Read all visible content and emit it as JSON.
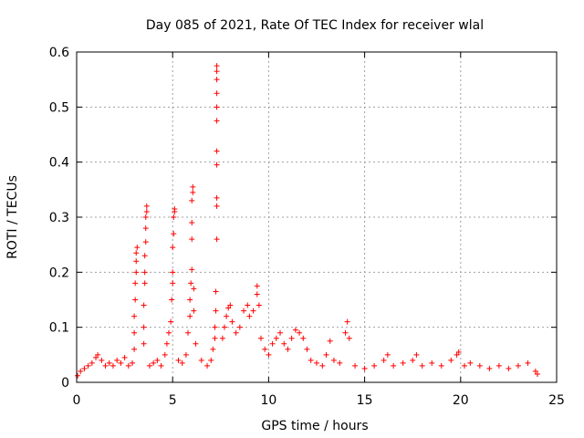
{
  "chart_data": {
    "type": "scatter",
    "title": "Day 085 of 2021, Rate Of TEC Index for receiver wlal",
    "xlabel": "GPS time / hours",
    "ylabel": "ROTI / TECUs",
    "xlim": [
      0,
      25
    ],
    "ylim": [
      0,
      0.6
    ],
    "xticks": [
      0,
      5,
      10,
      15,
      20,
      25
    ],
    "xtick_labels": [
      "0",
      "5",
      "10",
      "15",
      "20",
      "25"
    ],
    "yticks": [
      0,
      0.1,
      0.2,
      0.3,
      0.4,
      0.5,
      0.6
    ],
    "ytick_labels": [
      "0",
      "0.1",
      "0.2",
      "0.3",
      "0.4",
      "0.5",
      "0.6"
    ],
    "grid": true,
    "marker": "+",
    "color": "#ff0000",
    "series": [
      {
        "name": "ROTI",
        "points": [
          [
            0.05,
            0.012
          ],
          [
            0.2,
            0.02
          ],
          [
            0.4,
            0.025
          ],
          [
            0.6,
            0.03
          ],
          [
            0.8,
            0.035
          ],
          [
            1.0,
            0.045
          ],
          [
            1.1,
            0.05
          ],
          [
            1.3,
            0.04
          ],
          [
            1.5,
            0.03
          ],
          [
            1.7,
            0.035
          ],
          [
            1.9,
            0.03
          ],
          [
            2.1,
            0.04
          ],
          [
            2.3,
            0.035
          ],
          [
            2.5,
            0.045
          ],
          [
            2.7,
            0.03
          ],
          [
            2.9,
            0.035
          ],
          [
            3.0,
            0.06
          ],
          [
            3.0,
            0.09
          ],
          [
            3.0,
            0.12
          ],
          [
            3.05,
            0.15
          ],
          [
            3.05,
            0.18
          ],
          [
            3.1,
            0.2
          ],
          [
            3.1,
            0.22
          ],
          [
            3.1,
            0.235
          ],
          [
            3.15,
            0.245
          ],
          [
            3.5,
            0.07
          ],
          [
            3.5,
            0.1
          ],
          [
            3.5,
            0.14
          ],
          [
            3.55,
            0.18
          ],
          [
            3.55,
            0.2
          ],
          [
            3.55,
            0.23
          ],
          [
            3.6,
            0.255
          ],
          [
            3.6,
            0.28
          ],
          [
            3.6,
            0.3
          ],
          [
            3.65,
            0.31
          ],
          [
            3.65,
            0.32
          ],
          [
            3.8,
            0.03
          ],
          [
            4.0,
            0.035
          ],
          [
            4.2,
            0.04
          ],
          [
            4.4,
            0.03
          ],
          [
            4.6,
            0.05
          ],
          [
            4.7,
            0.07
          ],
          [
            4.8,
            0.09
          ],
          [
            4.9,
            0.11
          ],
          [
            4.95,
            0.15
          ],
          [
            5.0,
            0.18
          ],
          [
            5.0,
            0.2
          ],
          [
            5.0,
            0.245
          ],
          [
            5.05,
            0.27
          ],
          [
            5.05,
            0.3
          ],
          [
            5.1,
            0.31
          ],
          [
            5.1,
            0.315
          ],
          [
            5.3,
            0.04
          ],
          [
            5.5,
            0.035
          ],
          [
            5.7,
            0.05
          ],
          [
            5.8,
            0.09
          ],
          [
            5.9,
            0.12
          ],
          [
            5.9,
            0.15
          ],
          [
            5.95,
            0.18
          ],
          [
            6.0,
            0.205
          ],
          [
            6.0,
            0.26
          ],
          [
            6.0,
            0.29
          ],
          [
            6.0,
            0.33
          ],
          [
            6.05,
            0.345
          ],
          [
            6.05,
            0.355
          ],
          [
            6.1,
            0.17
          ],
          [
            6.1,
            0.13
          ],
          [
            6.2,
            0.07
          ],
          [
            6.5,
            0.04
          ],
          [
            6.8,
            0.03
          ],
          [
            7.0,
            0.04
          ],
          [
            7.1,
            0.06
          ],
          [
            7.2,
            0.08
          ],
          [
            7.2,
            0.1
          ],
          [
            7.25,
            0.13
          ],
          [
            7.25,
            0.165
          ],
          [
            7.3,
            0.26
          ],
          [
            7.3,
            0.32
          ],
          [
            7.3,
            0.335
          ],
          [
            7.3,
            0.395
          ],
          [
            7.3,
            0.42
          ],
          [
            7.3,
            0.475
          ],
          [
            7.3,
            0.5
          ],
          [
            7.3,
            0.525
          ],
          [
            7.3,
            0.55
          ],
          [
            7.3,
            0.565
          ],
          [
            7.3,
            0.575
          ],
          [
            7.6,
            0.08
          ],
          [
            7.7,
            0.1
          ],
          [
            7.8,
            0.12
          ],
          [
            7.9,
            0.135
          ],
          [
            8.0,
            0.14
          ],
          [
            8.1,
            0.11
          ],
          [
            8.3,
            0.09
          ],
          [
            8.5,
            0.1
          ],
          [
            8.7,
            0.13
          ],
          [
            8.9,
            0.14
          ],
          [
            9.0,
            0.12
          ],
          [
            9.2,
            0.13
          ],
          [
            9.4,
            0.175
          ],
          [
            9.4,
            0.16
          ],
          [
            9.5,
            0.14
          ],
          [
            9.6,
            0.08
          ],
          [
            9.8,
            0.06
          ],
          [
            10.0,
            0.05
          ],
          [
            10.2,
            0.07
          ],
          [
            10.4,
            0.08
          ],
          [
            10.6,
            0.09
          ],
          [
            10.8,
            0.07
          ],
          [
            11.0,
            0.06
          ],
          [
            11.2,
            0.08
          ],
          [
            11.4,
            0.095
          ],
          [
            11.6,
            0.09
          ],
          [
            11.8,
            0.08
          ],
          [
            12.0,
            0.06
          ],
          [
            12.2,
            0.04
          ],
          [
            12.5,
            0.035
          ],
          [
            12.8,
            0.03
          ],
          [
            13.0,
            0.05
          ],
          [
            13.2,
            0.075
          ],
          [
            13.4,
            0.04
          ],
          [
            13.7,
            0.035
          ],
          [
            14.0,
            0.09
          ],
          [
            14.1,
            0.11
          ],
          [
            14.2,
            0.08
          ],
          [
            14.5,
            0.03
          ],
          [
            15.0,
            0.025
          ],
          [
            15.5,
            0.03
          ],
          [
            16.0,
            0.04
          ],
          [
            16.2,
            0.05
          ],
          [
            16.5,
            0.03
          ],
          [
            17.0,
            0.035
          ],
          [
            17.5,
            0.04
          ],
          [
            17.7,
            0.05
          ],
          [
            18.0,
            0.03
          ],
          [
            18.5,
            0.035
          ],
          [
            19.0,
            0.03
          ],
          [
            19.5,
            0.04
          ],
          [
            19.8,
            0.05
          ],
          [
            19.9,
            0.055
          ],
          [
            20.2,
            0.03
          ],
          [
            20.5,
            0.035
          ],
          [
            21.0,
            0.03
          ],
          [
            21.5,
            0.025
          ],
          [
            22.0,
            0.03
          ],
          [
            22.5,
            0.025
          ],
          [
            23.0,
            0.03
          ],
          [
            23.5,
            0.035
          ],
          [
            23.9,
            0.02
          ],
          [
            24.0,
            0.015
          ]
        ]
      }
    ]
  }
}
